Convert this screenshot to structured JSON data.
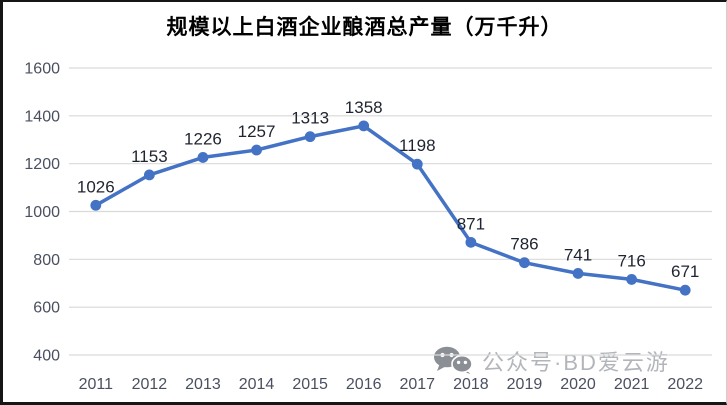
{
  "chart_data": {
    "type": "line",
    "title": "规模以上白酒企业酿酒总产量（万千升）",
    "categories": [
      "2011",
      "2012",
      "2013",
      "2014",
      "2015",
      "2016",
      "2017",
      "2018",
      "2019",
      "2020",
      "2021",
      "2022"
    ],
    "values": [
      1026,
      1153,
      1226,
      1257,
      1313,
      1358,
      1198,
      871,
      786,
      741,
      716,
      671
    ],
    "data_labels": [
      1026,
      1153,
      1226,
      1257,
      1313,
      1358,
      1198,
      871,
      786,
      741,
      716,
      671
    ],
    "xlabel": "",
    "ylabel": "",
    "ylim": [
      400,
      1600
    ],
    "ytick_step": 200,
    "yticks": [
      1600,
      1400,
      1200,
      1000,
      800,
      600,
      400
    ],
    "grid": "horizontal",
    "legend": "none",
    "marker": "circle",
    "colors": {
      "line": "#4472C4",
      "marker": "#4472C4",
      "gridline": "#d9d9d9",
      "axis_label": "#4b5060",
      "data_label": "#1f2430",
      "title": "#000000"
    }
  },
  "watermark": {
    "icon": "wechat-icon",
    "icon_color": "#8b8e94",
    "text": "公众号·BD爱云游",
    "text_color": "#b2b5ba"
  }
}
